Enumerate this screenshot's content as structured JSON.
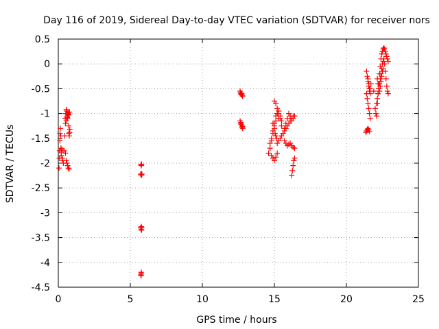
{
  "chart_data": {
    "type": "scatter",
    "title": "Day 116 of 2019, Sidereal Day-to-day VTEC variation (SDTVAR) for receiver nors",
    "xlabel": "GPS time / hours",
    "ylabel": "SDTVAR / TECUs",
    "xlim": [
      0,
      25
    ],
    "ylim": [
      -4.5,
      0.5
    ],
    "xticks": [
      0,
      5,
      10,
      15,
      20,
      25
    ],
    "xtick_labels": [
      "0",
      "5",
      "10",
      "15",
      "20",
      "25"
    ],
    "yticks": [
      0.5,
      0,
      -0.5,
      -1,
      -1.5,
      -2,
      -2.5,
      -3,
      -3.5,
      -4,
      -4.5
    ],
    "ytick_labels": [
      "0.5",
      "0",
      "-0.5",
      "-1",
      "-1.5",
      "-2",
      "-2.5",
      "-3",
      "-3.5",
      "-4",
      "-4.5"
    ],
    "grid": true,
    "marker": "+",
    "color": "#ff0000",
    "series": [
      {
        "name": "SDTVAR",
        "x": [
          0.05,
          0.07,
          0.09,
          0.11,
          0.12,
          0.14,
          0.16,
          0.18,
          0.2,
          0.22,
          0.25,
          0.28,
          0.3,
          0.35,
          0.4,
          0.45,
          0.5,
          0.52,
          0.55,
          0.58,
          0.6,
          0.62,
          0.65,
          0.68,
          0.7,
          0.72,
          0.74,
          0.76,
          0.78,
          0.8,
          0.5,
          0.55,
          0.6,
          0.65,
          0.7,
          0.75,
          0.48,
          0.55,
          0.62,
          0.68,
          0.72,
          0.78,
          5.72,
          5.74,
          5.76,
          5.78,
          5.8,
          5.74,
          5.76,
          5.78,
          5.72,
          5.74,
          5.76,
          5.78,
          5.8,
          5.75,
          5.77,
          5.73,
          5.75,
          12.62,
          12.65,
          12.68,
          12.7,
          12.73,
          12.76,
          12.79,
          12.62,
          12.65,
          12.68,
          12.7,
          12.73,
          12.76,
          12.79,
          12.8,
          14.6,
          14.7,
          14.8,
          14.9,
          15.0,
          15.1,
          15.2,
          15.3,
          14.7,
          14.8,
          14.9,
          15.0,
          15.1,
          15.2,
          15.3,
          15.4,
          15.5,
          15.0,
          15.1,
          15.2,
          15.3,
          15.4,
          15.5,
          15.6,
          15.7,
          15.8,
          15.9,
          16.0,
          16.1,
          16.2,
          16.3,
          16.4,
          15.6,
          15.7,
          15.8,
          15.9,
          16.0,
          16.1,
          16.2,
          16.3,
          16.4,
          15.2,
          15.3,
          15.4,
          15.5,
          15.6,
          15.7,
          15.8,
          15.9,
          16.0,
          16.1,
          16.2,
          16.3,
          14.8,
          14.9,
          15.0,
          15.1,
          15.2,
          16.2,
          16.25,
          16.3,
          16.35,
          16.4,
          14.9,
          15.0,
          15.05,
          15.1,
          15.15,
          21.35,
          21.4,
          21.45,
          21.5,
          21.55,
          21.6,
          21.4,
          21.45,
          21.5,
          21.55,
          21.6,
          21.65,
          21.7,
          21.4,
          21.45,
          21.5,
          21.55,
          21.6,
          21.65,
          21.5,
          21.55,
          21.6,
          21.65,
          21.9,
          22.0,
          22.05,
          22.1,
          22.15,
          22.2,
          22.25,
          22.3,
          22.35,
          22.4,
          22.45,
          22.5,
          22.55,
          22.6,
          22.65,
          22.7,
          22.75,
          22.8,
          22.85,
          22.9,
          22.1,
          22.15,
          22.2,
          22.25,
          22.3,
          22.35,
          22.4,
          22.45,
          22.5,
          22.55,
          22.6,
          22.65,
          22.7,
          22.75,
          22.8,
          22.85,
          22.9,
          22.15,
          22.2,
          22.25,
          22.3,
          22.35,
          22.4,
          22.45,
          22.5,
          22.55
        ],
        "y": [
          -2.1,
          -1.9,
          -1.75,
          -1.55,
          -1.4,
          -1.3,
          -1.45,
          -1.7,
          -1.85,
          -1.78,
          -1.72,
          -1.9,
          -1.95,
          -2.0,
          -1.75,
          -1.45,
          -1.2,
          -1.0,
          -0.92,
          -0.95,
          -1.0,
          -1.05,
          -1.1,
          -0.98,
          -1.02,
          -1.25,
          -1.4,
          -1.45,
          -1.38,
          -1.32,
          -1.8,
          -1.95,
          -2.0,
          -2.05,
          -2.1,
          -2.12,
          -1.1,
          -1.15,
          -1.08,
          -1.0,
          -1.03,
          -0.97,
          -2.22,
          -2.24,
          -2.22,
          -2.24,
          -2.22,
          -2.03,
          -2.05,
          -2.02,
          -3.3,
          -3.33,
          -3.28,
          -3.35,
          -3.3,
          -4.2,
          -4.22,
          -4.25,
          -4.27,
          -0.55,
          -0.58,
          -0.6,
          -0.62,
          -0.6,
          -0.63,
          -0.65,
          -1.15,
          -1.2,
          -1.18,
          -1.22,
          -1.25,
          -1.28,
          -1.26,
          -1.3,
          -1.8,
          -1.7,
          -1.55,
          -1.4,
          -1.2,
          -1.05,
          -1.0,
          -1.1,
          -1.6,
          -1.5,
          -1.35,
          -1.25,
          -1.15,
          -1.0,
          -0.95,
          -1.05,
          -1.15,
          -0.75,
          -0.8,
          -0.9,
          -1.0,
          -1.1,
          -1.25,
          -1.4,
          -1.55,
          -1.6,
          -1.65,
          -1.62,
          -1.6,
          -1.65,
          -1.68,
          -1.7,
          -1.4,
          -1.3,
          -1.2,
          -1.1,
          -1.0,
          -1.05,
          -1.15,
          -1.1,
          -1.05,
          -1.6,
          -1.55,
          -1.5,
          -1.45,
          -1.4,
          -1.35,
          -1.3,
          -1.25,
          -1.2,
          -1.15,
          -1.1,
          -1.05,
          -1.85,
          -1.9,
          -1.95,
          -1.88,
          -1.8,
          -2.25,
          -2.15,
          -2.05,
          -1.95,
          -1.9,
          -1.2,
          -1.3,
          -1.4,
          -1.45,
          -1.5,
          -1.38,
          -1.35,
          -1.32,
          -1.3,
          -1.33,
          -1.36,
          -0.15,
          -0.25,
          -0.35,
          -0.45,
          -0.55,
          -0.5,
          -0.4,
          -0.6,
          -0.7,
          -0.8,
          -0.9,
          -1.0,
          -1.1,
          -0.3,
          -0.4,
          -0.5,
          -0.6,
          -0.55,
          -0.9,
          -1.0,
          -1.05,
          -0.8,
          -0.6,
          -0.4,
          -0.2,
          -0.05,
          0.1,
          0.2,
          0.25,
          0.3,
          0.32,
          0.3,
          0.25,
          0.2,
          0.15,
          0.1,
          0.05,
          -0.8,
          -0.7,
          -0.6,
          -0.5,
          -0.4,
          -0.3,
          -0.2,
          -0.1,
          0.0,
          0.05,
          0.1,
          0.0,
          -0.15,
          -0.3,
          -0.45,
          -0.55,
          -0.6,
          -0.3,
          -0.4,
          -0.5,
          -0.55,
          -0.45,
          -0.35,
          -0.25,
          -0.15,
          -0.1
        ]
      }
    ]
  }
}
